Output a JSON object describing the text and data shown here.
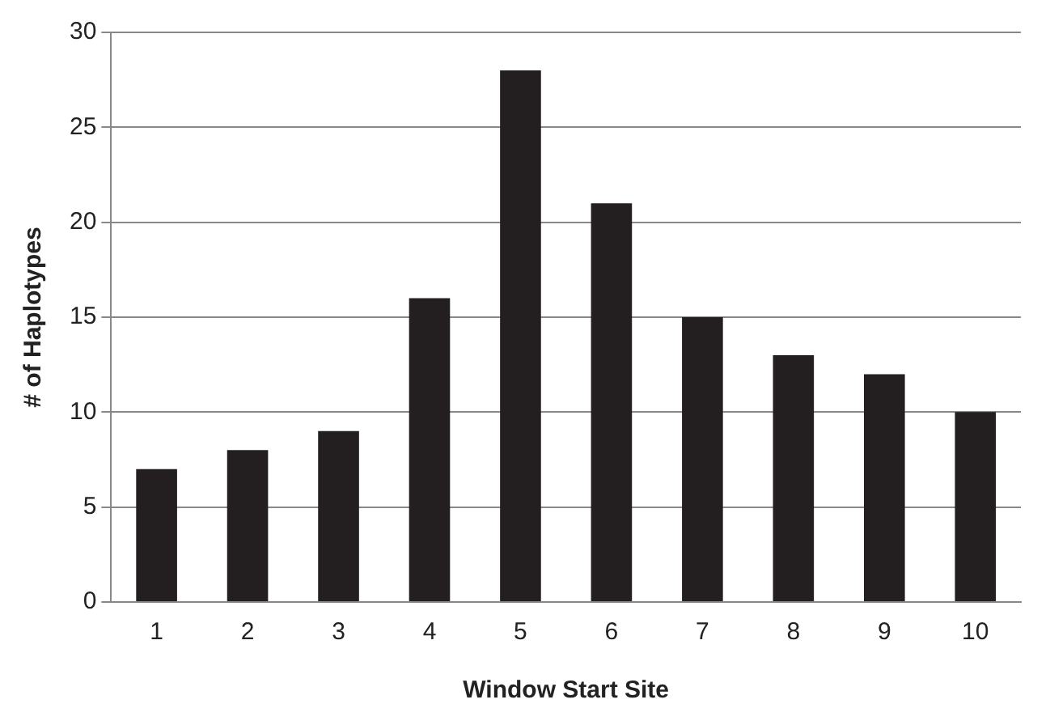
{
  "chart_data": {
    "type": "bar",
    "xlabel": "Window Start Site",
    "ylabel": "# of Haplotypes",
    "categories": [
      "1",
      "2",
      "3",
      "4",
      "5",
      "6",
      "7",
      "8",
      "9",
      "10"
    ],
    "values": [
      7,
      8,
      9,
      16,
      28,
      21,
      15,
      13,
      12,
      10
    ],
    "color": "#231f20",
    "ylim": [
      0,
      30
    ],
    "yticks": [
      0,
      5,
      10,
      15,
      20,
      25,
      30
    ],
    "grid": "y",
    "legend": false
  }
}
